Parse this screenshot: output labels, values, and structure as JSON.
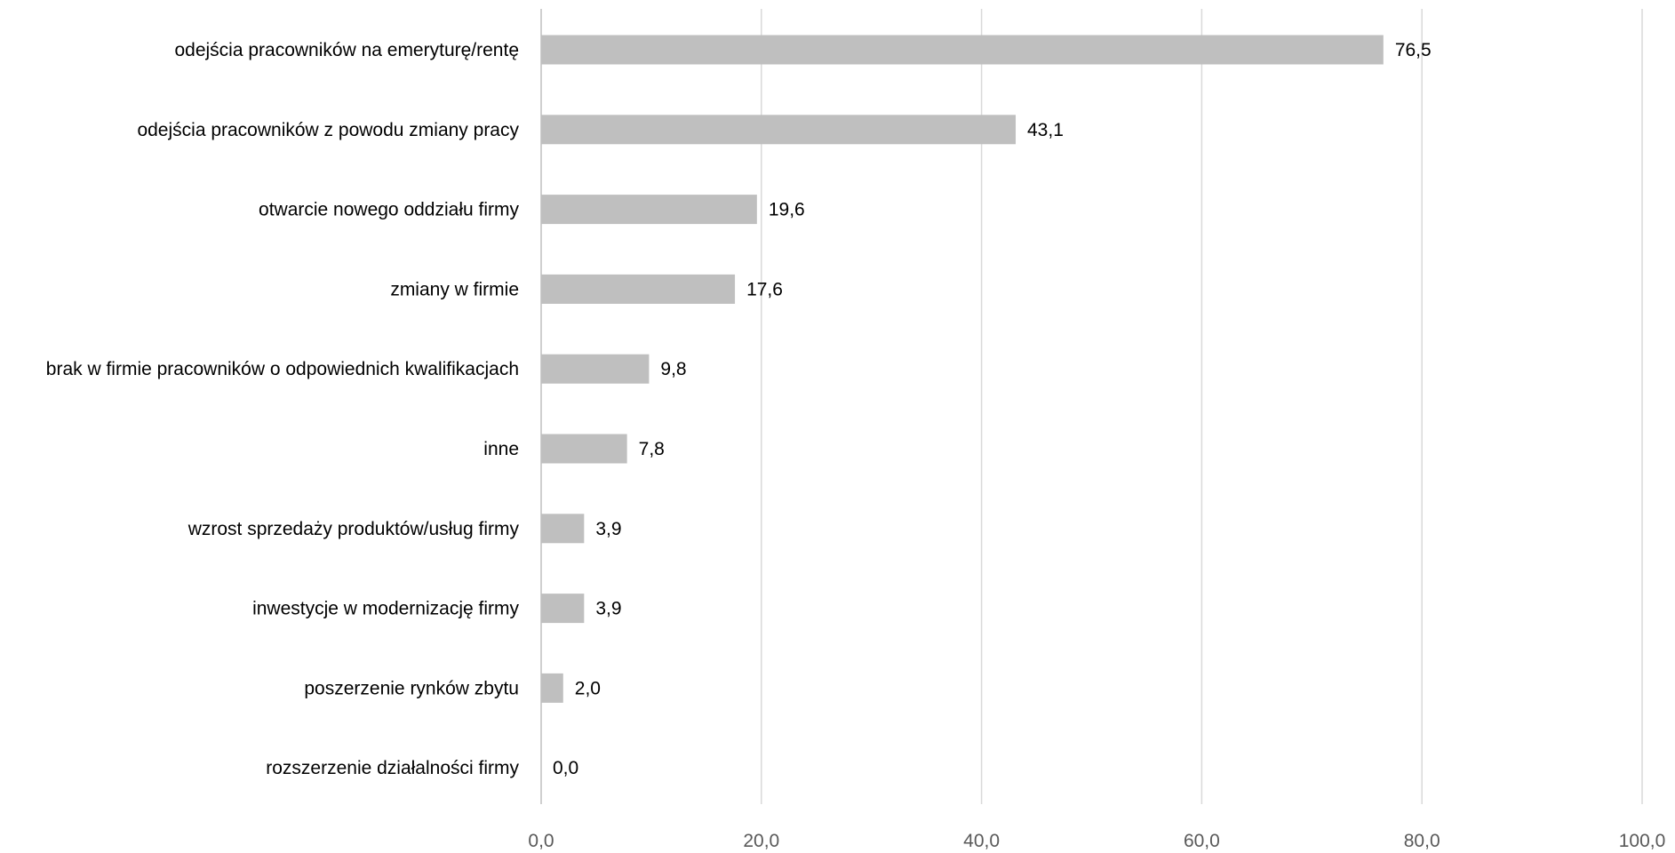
{
  "chart_data": {
    "type": "bar",
    "orientation": "horizontal",
    "categories": [
      "odejścia pracowników na emeryturę/rentę",
      "odejścia pracowników z powodu zmiany pracy",
      "otwarcie nowego oddziału firmy",
      "zmiany w firmie",
      "brak w firmie pracowników o odpowiednich kwalifikacjach",
      "inne",
      "wzrost sprzedaży produktów/usług firmy",
      "inwestycje w modernizację firmy",
      "poszerzenie rynków zbytu",
      "rozszerzenie działalności firmy"
    ],
    "values": [
      76.5,
      43.1,
      19.6,
      17.6,
      9.8,
      7.8,
      3.9,
      3.9,
      2.0,
      0.0
    ],
    "value_labels": [
      "76,5",
      "43,1",
      "19,6",
      "17,6",
      "9,8",
      "7,8",
      "3,9",
      "3,9",
      "2,0",
      "0,0"
    ],
    "xlim": [
      0,
      100
    ],
    "x_ticks": [
      0,
      20,
      40,
      60,
      80,
      100
    ],
    "x_tick_labels": [
      "0,0",
      "20,0",
      "40,0",
      "60,0",
      "80,0",
      "100,0"
    ],
    "title": "",
    "xlabel": "",
    "ylabel": "",
    "grid": "vertical",
    "legend": "none",
    "bar_color": "#bfbfbf",
    "grid_color": "#d9d9d9"
  }
}
